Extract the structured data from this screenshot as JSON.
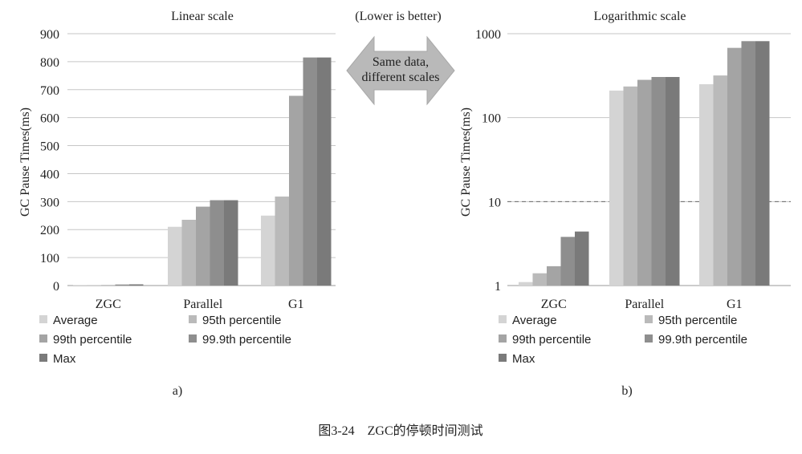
{
  "chart_data": [
    {
      "type": "bar",
      "title": "Linear scale",
      "ylabel": "GC Pause Times(ms)",
      "xlabel": "",
      "scale": "linear",
      "ylim": [
        0,
        900
      ],
      "yticks": [
        "0",
        "100",
        "200",
        "300",
        "400",
        "500",
        "600",
        "700",
        "800",
        "900"
      ],
      "grid": true,
      "legend_position": "bottom",
      "categories": [
        "ZGC",
        "Parallel",
        "G1"
      ],
      "series": [
        {
          "name": "Average",
          "values": [
            1.1,
            210,
            250
          ],
          "color": "#d4d4d4"
        },
        {
          "name": "95th percentile",
          "values": [
            1.4,
            235,
            318
          ],
          "color": "#bababa"
        },
        {
          "name": "99th percentile",
          "values": [
            1.7,
            282,
            678
          ],
          "color": "#a4a4a4"
        },
        {
          "name": "99.9th percentile",
          "values": [
            3.8,
            305,
            815
          ],
          "color": "#8e8e8e"
        },
        {
          "name": "Max",
          "values": [
            4.4,
            305,
            815
          ],
          "color": "#7a7a7a"
        }
      ],
      "caption": "a)"
    },
    {
      "type": "bar",
      "title": "Logarithmic scale",
      "ylabel": "GC Pause Times(ms)",
      "xlabel": "",
      "scale": "log",
      "ylim": [
        1,
        1000
      ],
      "yticks": [
        "1",
        "10",
        "100",
        "1000"
      ],
      "grid": true,
      "reference_line": 10,
      "legend_position": "bottom",
      "categories": [
        "ZGC",
        "Parallel",
        "G1"
      ],
      "series": [
        {
          "name": "Average",
          "values": [
            1.1,
            210,
            250
          ],
          "color": "#d4d4d4"
        },
        {
          "name": "95th percentile",
          "values": [
            1.4,
            235,
            318
          ],
          "color": "#bababa"
        },
        {
          "name": "99th percentile",
          "values": [
            1.7,
            282,
            678
          ],
          "color": "#a4a4a4"
        },
        {
          "name": "99.9th percentile",
          "values": [
            3.8,
            305,
            815
          ],
          "color": "#8e8e8e"
        },
        {
          "name": "Max",
          "values": [
            4.4,
            305,
            815
          ],
          "color": "#7a7a7a"
        }
      ],
      "caption": "b)"
    }
  ],
  "annotation": {
    "top_text": "(Lower is better)",
    "arrow_line1": "Same data,",
    "arrow_line2": "different scales"
  },
  "figure_caption": "图3-24　ZGC的停顿时间测试"
}
